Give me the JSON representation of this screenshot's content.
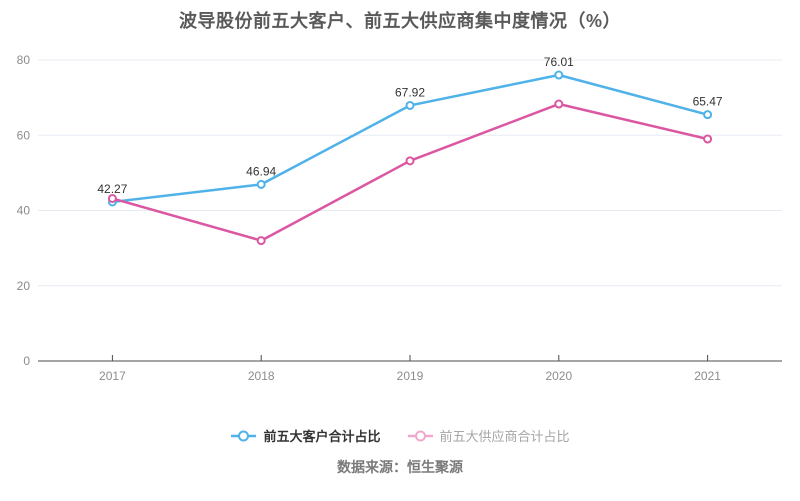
{
  "chart_data": {
    "type": "line",
    "title": "波导股份前五大客户、前五大供应商集中度情况（%）",
    "categories": [
      "2017",
      "2018",
      "2019",
      "2020",
      "2021"
    ],
    "series": [
      {
        "name": "前五大客户合计占比",
        "color": "#4FB2E8",
        "legend_icon_color": "#4FB2E8",
        "values": [
          42.27,
          46.94,
          67.92,
          76.01,
          65.47
        ],
        "show_labels": true
      },
      {
        "name": "前五大供应商合计占比",
        "color": "#DB57A2",
        "legend_icon_color": "#F0A8CF",
        "values": [
          43.2,
          32.0,
          53.2,
          68.3,
          59.0
        ],
        "show_labels": false
      }
    ],
    "xlabel": "",
    "ylabel": "",
    "ylim": [
      0,
      80
    ],
    "yticks": [
      0,
      20,
      40,
      60,
      80
    ],
    "grid": true,
    "legend_position": "bottom",
    "colors": {
      "grid": "#E7EBF3",
      "axis_line": "#4a4a4a",
      "axis_label": "#8c8c8c",
      "value_label": "#333333"
    }
  },
  "footer": {
    "source": "数据来源：恒生聚源"
  }
}
